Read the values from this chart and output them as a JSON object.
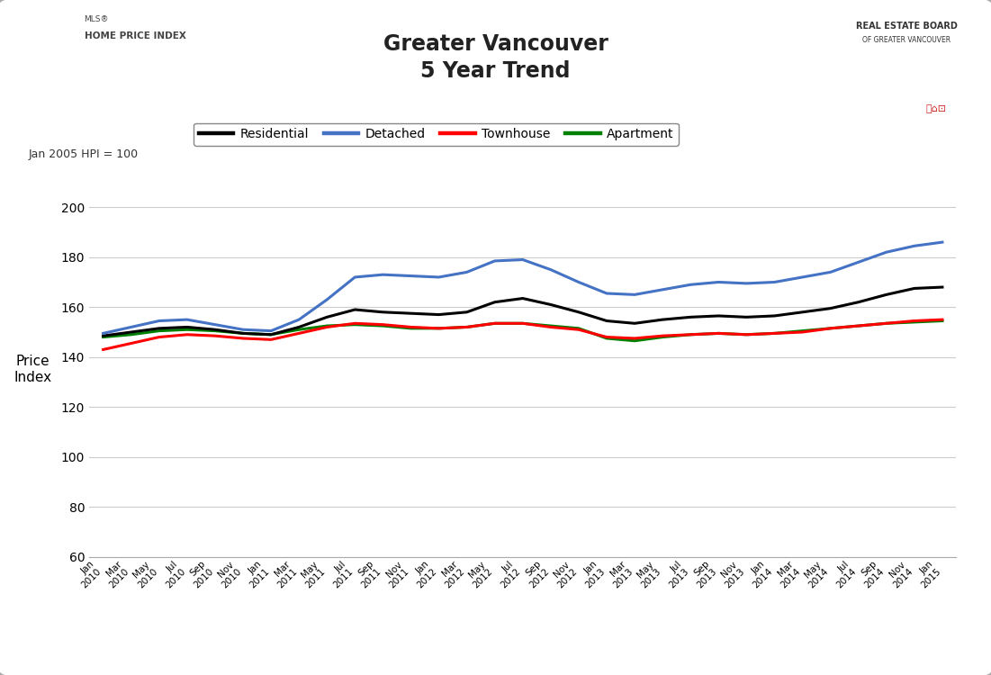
{
  "title_line1": "Greater Vancouver",
  "title_line2": "5 Year Trend",
  "ylabel": "Price\nIndex",
  "note": "Jan 2005 HPI = 100",
  "ylim": [
    60,
    210
  ],
  "yticks": [
    60,
    80,
    100,
    120,
    140,
    160,
    180,
    200
  ],
  "background_color": "#d8d8d8",
  "plot_bg_color": "#ffffff",
  "x_labels": [
    "Jan\n2010",
    "Mar\n2010",
    "May\n2010",
    "Jul\n2010",
    "Sep\n2010",
    "Nov\n2010",
    "Jan\n2011",
    "Mar\n2011",
    "May\n2011",
    "Jul\n2011",
    "Sep\n2011",
    "Nov\n2011",
    "Jan\n2012",
    "Mar\n2012",
    "May\n2012",
    "Jul\n2012",
    "Sep\n2012",
    "Nov\n2012",
    "Jan\n2013",
    "Mar\n2013",
    "May\n2013",
    "Jul\n2013",
    "Sep\n2013",
    "Nov\n2013",
    "Jan\n2014",
    "Mar\n2014",
    "May\n2014",
    "Jul\n2014",
    "Sep\n2014",
    "Nov\n2014",
    "Jan\n2015"
  ],
  "residential": [
    148.5,
    150.0,
    151.5,
    152.0,
    151.0,
    149.5,
    149.0,
    152.0,
    156.0,
    159.0,
    158.0,
    157.5,
    157.0,
    158.0,
    162.0,
    163.5,
    161.0,
    158.0,
    154.5,
    153.5,
    155.0,
    156.0,
    156.5,
    156.0,
    156.5,
    158.0,
    159.5,
    162.0,
    165.0,
    167.5,
    168.0
  ],
  "detached": [
    149.5,
    152.0,
    154.5,
    155.0,
    153.0,
    151.0,
    150.5,
    155.0,
    163.0,
    172.0,
    173.0,
    172.5,
    172.0,
    174.0,
    178.5,
    179.0,
    175.0,
    170.0,
    165.5,
    165.0,
    167.0,
    169.0,
    170.0,
    169.5,
    170.0,
    172.0,
    174.0,
    178.0,
    182.0,
    184.5,
    186.0
  ],
  "townhouse": [
    143.0,
    145.5,
    148.0,
    149.0,
    148.5,
    147.5,
    147.0,
    149.5,
    152.0,
    153.5,
    153.0,
    152.0,
    151.5,
    152.0,
    153.5,
    153.5,
    152.0,
    151.0,
    148.0,
    147.5,
    148.5,
    149.0,
    149.5,
    149.0,
    149.5,
    150.0,
    151.5,
    152.5,
    153.5,
    154.5,
    155.0
  ],
  "apartment": [
    148.0,
    149.0,
    150.5,
    151.0,
    150.5,
    149.5,
    149.0,
    151.0,
    152.5,
    153.0,
    152.5,
    151.5,
    151.5,
    152.0,
    153.5,
    153.5,
    152.5,
    151.5,
    147.5,
    146.5,
    148.0,
    149.0,
    149.5,
    149.0,
    149.5,
    150.5,
    151.5,
    152.5,
    153.5,
    154.0,
    154.5
  ],
  "line_colors": {
    "residential": "#000000",
    "detached": "#4472C4",
    "townhouse": "#FF0000",
    "apartment": "#008000"
  },
  "line_width": 2.2
}
